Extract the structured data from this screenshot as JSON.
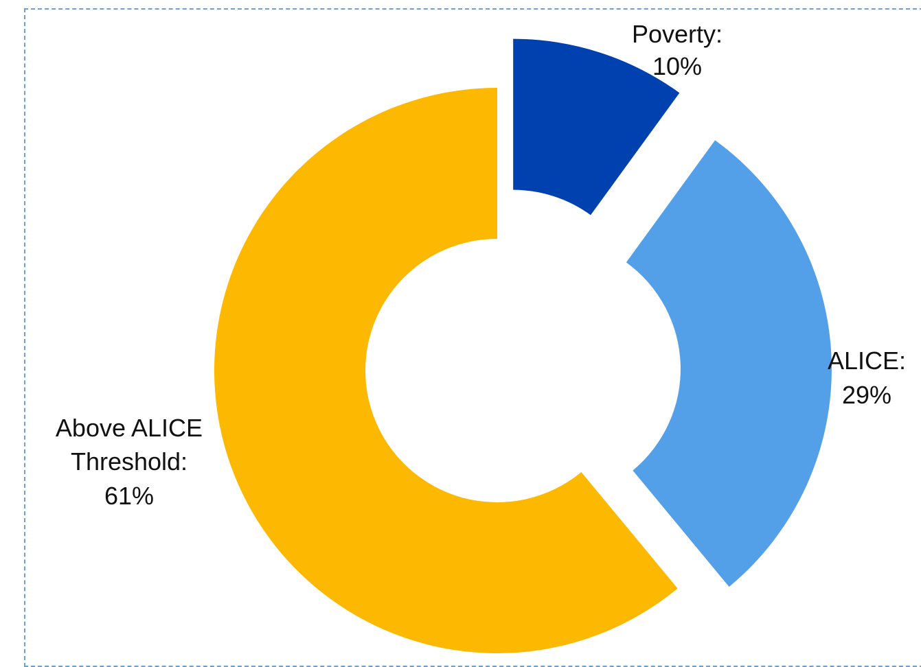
{
  "chart_data": {
    "type": "pie",
    "style": "doughnut",
    "exploded": true,
    "slices": [
      {
        "label": "Poverty:",
        "value": 10,
        "value_label": "10%",
        "color": "#0041b0"
      },
      {
        "label": "ALICE:",
        "value": 29,
        "value_label": "29%",
        "color": "#54a0e8"
      },
      {
        "label": "Above ALICE Threshold:",
        "label_lines": [
          "Above ALICE",
          "Threshold:"
        ],
        "value": 61,
        "value_label": "61%",
        "color": "#fdb801"
      }
    ]
  }
}
